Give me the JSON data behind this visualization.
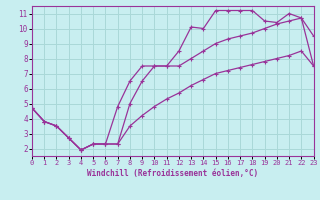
{
  "xlabel": "Windchill (Refroidissement éolien,°C)",
  "bg_color": "#c8eef0",
  "line_color": "#993399",
  "grid_color": "#aad8d8",
  "xlim": [
    0,
    23
  ],
  "ylim": [
    1.5,
    11.5
  ],
  "xticks": [
    0,
    1,
    2,
    3,
    4,
    5,
    6,
    7,
    8,
    9,
    10,
    11,
    12,
    13,
    14,
    15,
    16,
    17,
    18,
    19,
    20,
    21,
    22,
    23
  ],
  "yticks": [
    2,
    3,
    4,
    5,
    6,
    7,
    8,
    9,
    10,
    11
  ],
  "curve1_x": [
    0,
    1,
    2,
    3,
    4,
    5,
    6,
    7,
    8,
    9,
    10,
    11,
    12,
    13,
    14,
    15,
    16,
    17,
    18,
    19,
    20,
    21,
    22,
    23
  ],
  "curve1_y": [
    4.7,
    3.8,
    3.5,
    2.7,
    1.9,
    2.3,
    2.3,
    2.3,
    5.0,
    6.5,
    7.5,
    7.5,
    8.5,
    10.1,
    10.0,
    11.2,
    11.2,
    11.2,
    11.2,
    10.5,
    10.4,
    11.0,
    10.7,
    9.5
  ],
  "curve2_x": [
    0,
    1,
    2,
    3,
    4,
    5,
    6,
    7,
    8,
    9,
    10,
    11,
    12,
    13,
    14,
    15,
    16,
    17,
    18,
    19,
    20,
    21,
    22,
    23
  ],
  "curve2_y": [
    4.7,
    3.8,
    3.5,
    2.7,
    1.9,
    2.3,
    2.3,
    4.8,
    6.5,
    7.5,
    7.5,
    7.5,
    7.5,
    8.0,
    8.5,
    9.0,
    9.3,
    9.5,
    9.7,
    10.0,
    10.3,
    10.5,
    10.7,
    7.5
  ],
  "curve3_x": [
    0,
    1,
    2,
    3,
    4,
    5,
    6,
    7,
    8,
    9,
    10,
    11,
    12,
    13,
    14,
    15,
    16,
    17,
    18,
    19,
    20,
    21,
    22,
    23
  ],
  "curve3_y": [
    4.7,
    3.8,
    3.5,
    2.7,
    1.9,
    2.3,
    2.3,
    2.3,
    3.5,
    4.2,
    4.8,
    5.3,
    5.7,
    6.2,
    6.6,
    7.0,
    7.2,
    7.4,
    7.6,
    7.8,
    8.0,
    8.2,
    8.5,
    7.5
  ]
}
